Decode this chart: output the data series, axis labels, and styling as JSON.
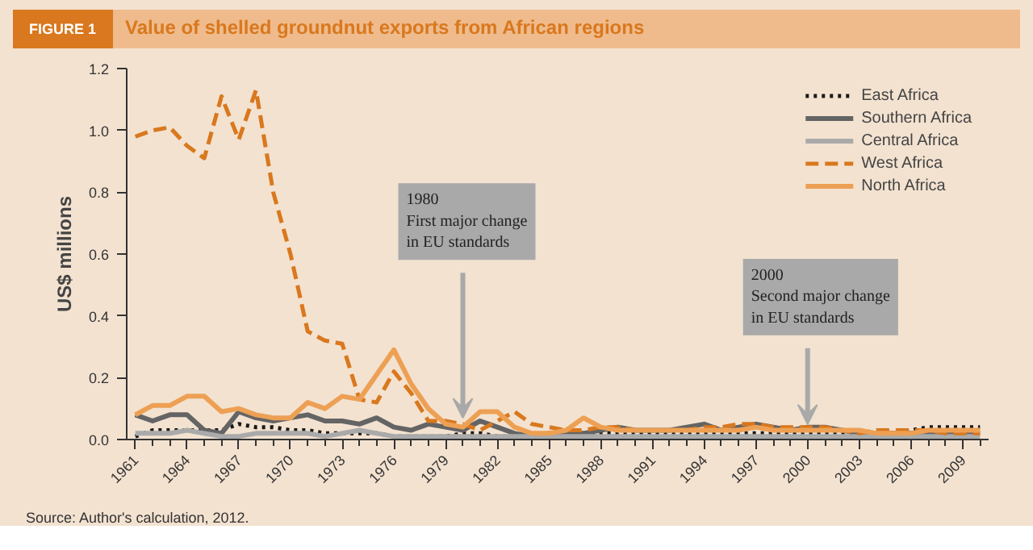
{
  "chart_data": {
    "type": "line",
    "title": "Value of shelled groundnut exports from African regions",
    "subtitle": "FIGURE 1",
    "ylabel": "US$ millions",
    "x": [
      1961,
      1962,
      1963,
      1964,
      1965,
      1966,
      1967,
      1968,
      1969,
      1970,
      1971,
      1972,
      1973,
      1974,
      1975,
      1976,
      1977,
      1978,
      1979,
      1980,
      1981,
      1982,
      1983,
      1984,
      1985,
      1986,
      1987,
      1988,
      1989,
      1990,
      1991,
      1992,
      1993,
      1994,
      1995,
      1996,
      1997,
      1998,
      1999,
      2000,
      2001,
      2002,
      2003,
      2004,
      2005,
      2006,
      2007,
      2008,
      2009,
      2010
    ],
    "xlim": [
      1960.5,
      2010.5
    ],
    "xticks": [
      1961,
      1964,
      1967,
      1970,
      1973,
      1976,
      1979,
      1982,
      1985,
      1988,
      1991,
      1994,
      1997,
      2000,
      2003,
      2006,
      2009
    ],
    "ylim": [
      0,
      1.2
    ],
    "yticks": [
      {
        "value": 0,
        "label": "0.0"
      },
      {
        "value": 0.2,
        "label": "0.2"
      },
      {
        "value": 0.4,
        "label": "0.4"
      },
      {
        "value": 0.6,
        "label": "0.6"
      },
      {
        "value": 0.8,
        "label": "0.8"
      },
      {
        "value": 1.0,
        "label": "1.0"
      },
      {
        "value": 1.2,
        "label": "1.2"
      }
    ],
    "grid": false,
    "legend": "top right",
    "marker": "none",
    "series": [
      {
        "name": "East Africa",
        "color": "#1a1a1a",
        "line_style": "dotted",
        "values": [
          0.01,
          0.03,
          0.03,
          0.03,
          0.03,
          0.03,
          0.05,
          0.04,
          0.04,
          0.03,
          0.03,
          0.02,
          0.02,
          0.02,
          0.02,
          0.01,
          0.01,
          0.01,
          0.01,
          0.02,
          0.02,
          0.01,
          0.01,
          0.01,
          0.01,
          0.01,
          0.01,
          0.02,
          0.02,
          0.02,
          0.02,
          0.02,
          0.02,
          0.02,
          0.02,
          0.02,
          0.02,
          0.02,
          0.02,
          0.02,
          0.02,
          0.02,
          0.02,
          0.02,
          0.02,
          0.03,
          0.04,
          0.04,
          0.04,
          0.04
        ]
      },
      {
        "name": "Southern Africa",
        "color": "#646464",
        "line_style": "solid",
        "values": [
          0.08,
          0.06,
          0.08,
          0.08,
          0.03,
          0.02,
          0.09,
          0.07,
          0.06,
          0.07,
          0.08,
          0.06,
          0.06,
          0.05,
          0.07,
          0.04,
          0.03,
          0.05,
          0.04,
          0.03,
          0.06,
          0.04,
          0.02,
          0.01,
          0.02,
          0.02,
          0.02,
          0.03,
          0.04,
          0.03,
          0.03,
          0.03,
          0.04,
          0.05,
          0.03,
          0.04,
          0.05,
          0.04,
          0.03,
          0.04,
          0.04,
          0.03,
          0.02,
          0.02,
          0.02,
          0.02,
          0.02,
          0.02,
          0.02,
          0.02
        ]
      },
      {
        "name": "Central Africa",
        "color": "#aaaaaa",
        "line_style": "solid",
        "values": [
          0.02,
          0.02,
          0.02,
          0.03,
          0.02,
          0.01,
          0.01,
          0.02,
          0.02,
          0.02,
          0.02,
          0.01,
          0.02,
          0.03,
          0.02,
          0.01,
          0.01,
          0.01,
          0.01,
          0.01,
          0.01,
          0.01,
          0.01,
          0.01,
          0.01,
          0.01,
          0.01,
          0.01,
          0.01,
          0.01,
          0.01,
          0.01,
          0.01,
          0.01,
          0.01,
          0.01,
          0.01,
          0.01,
          0.01,
          0.01,
          0.01,
          0.01,
          0.01,
          0.01,
          0.01,
          0.01,
          0.01,
          0.01,
          0.01,
          0.01
        ]
      },
      {
        "name": "West Africa",
        "color": "#d9781e",
        "line_style": "dashed",
        "values": [
          0.98,
          1.0,
          1.01,
          0.95,
          0.91,
          1.11,
          0.97,
          1.13,
          0.8,
          0.6,
          0.35,
          0.32,
          0.31,
          0.13,
          0.12,
          0.22,
          0.15,
          0.06,
          0.06,
          0.05,
          0.03,
          0.06,
          0.09,
          0.05,
          0.04,
          0.03,
          0.03,
          0.04,
          0.04,
          0.03,
          0.03,
          0.03,
          0.03,
          0.04,
          0.04,
          0.05,
          0.05,
          0.04,
          0.04,
          0.04,
          0.04,
          0.03,
          0.02,
          0.03,
          0.03,
          0.03,
          0.03,
          0.02,
          0.02,
          0.02
        ]
      },
      {
        "name": "North Africa",
        "color": "#eda054",
        "line_style": "solid",
        "values": [
          0.08,
          0.11,
          0.11,
          0.14,
          0.14,
          0.09,
          0.1,
          0.08,
          0.07,
          0.07,
          0.12,
          0.1,
          0.14,
          0.13,
          0.21,
          0.29,
          0.18,
          0.1,
          0.05,
          0.04,
          0.09,
          0.09,
          0.04,
          0.02,
          0.02,
          0.03,
          0.07,
          0.04,
          0.03,
          0.03,
          0.03,
          0.03,
          0.03,
          0.03,
          0.03,
          0.03,
          0.04,
          0.03,
          0.03,
          0.03,
          0.03,
          0.03,
          0.03,
          0.02,
          0.02,
          0.02,
          0.03,
          0.03,
          0.03,
          0.03
        ]
      }
    ],
    "annotations": [
      {
        "text": "1980\nFirst major change\nin EU standards",
        "x": 1980,
        "y": 0.07
      },
      {
        "text": "2000\nSecond major change\nin EU standards",
        "x": 2000,
        "y": 0.05
      },
      "Source: Author's calculation, 2012."
    ]
  }
}
